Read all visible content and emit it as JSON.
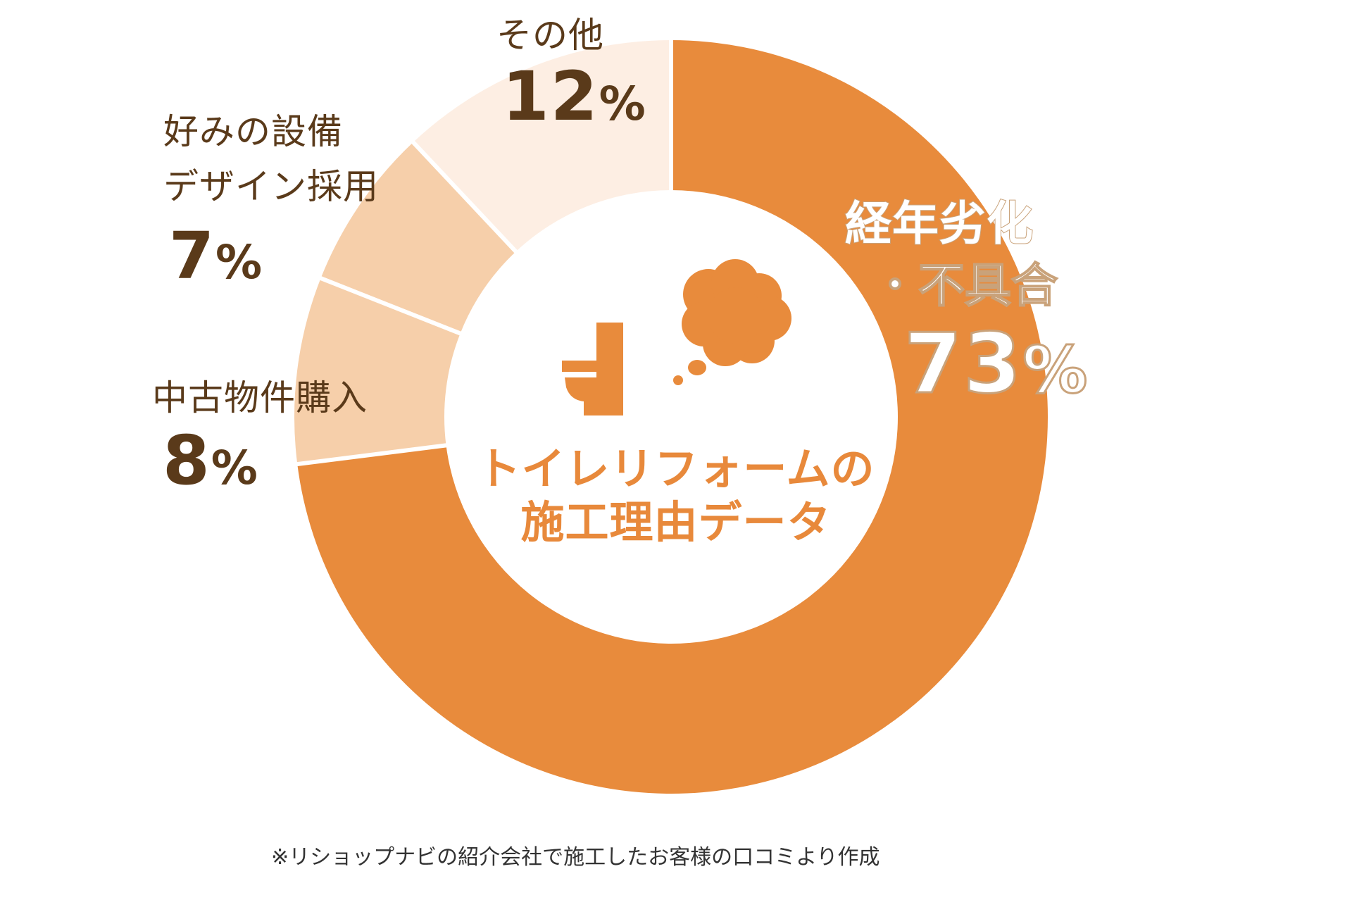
{
  "chart_data": {
    "type": "pie",
    "subtype": "donut",
    "title": "トイレリフォームの施工理由データ",
    "categories": [
      "経年劣化・不具合",
      "中古物件購入",
      "好みの設備デザイン採用",
      "その他"
    ],
    "values": [
      73,
      8,
      7,
      12
    ],
    "unit": "%",
    "colors": [
      "#E88B3C",
      "#F6CFAA",
      "#F6CFAA",
      "#FDEEE3"
    ],
    "start_angle_deg": 0,
    "direction": "clockwise",
    "note": "※リショップナビの紹介会社で施工したお客様の口コミより作成"
  },
  "labels": {
    "main": {
      "name_line1": "経年劣化",
      "name_line2": "・不具合",
      "value": "73",
      "unit": "%"
    },
    "used": {
      "name": "中古物件購入",
      "value": "8",
      "unit": "%"
    },
    "pref": {
      "name_line1": "好みの設備",
      "name_line2": "デザイン採用",
      "value": "7",
      "unit": "%"
    },
    "other": {
      "name": "その他",
      "value": "12",
      "unit": "%"
    }
  },
  "center": {
    "title_line1": "トイレリフォームの",
    "title_line2": "施工理由データ",
    "icon": "toilet-thought-bubble-icon"
  },
  "footnote": "※リショップナビの紹介会社で施工したお客様の口コミより作成",
  "colors": {
    "accent": "#E88B3C",
    "text_dark": "#5A3A1A",
    "label_outline": "#C9A27A"
  }
}
